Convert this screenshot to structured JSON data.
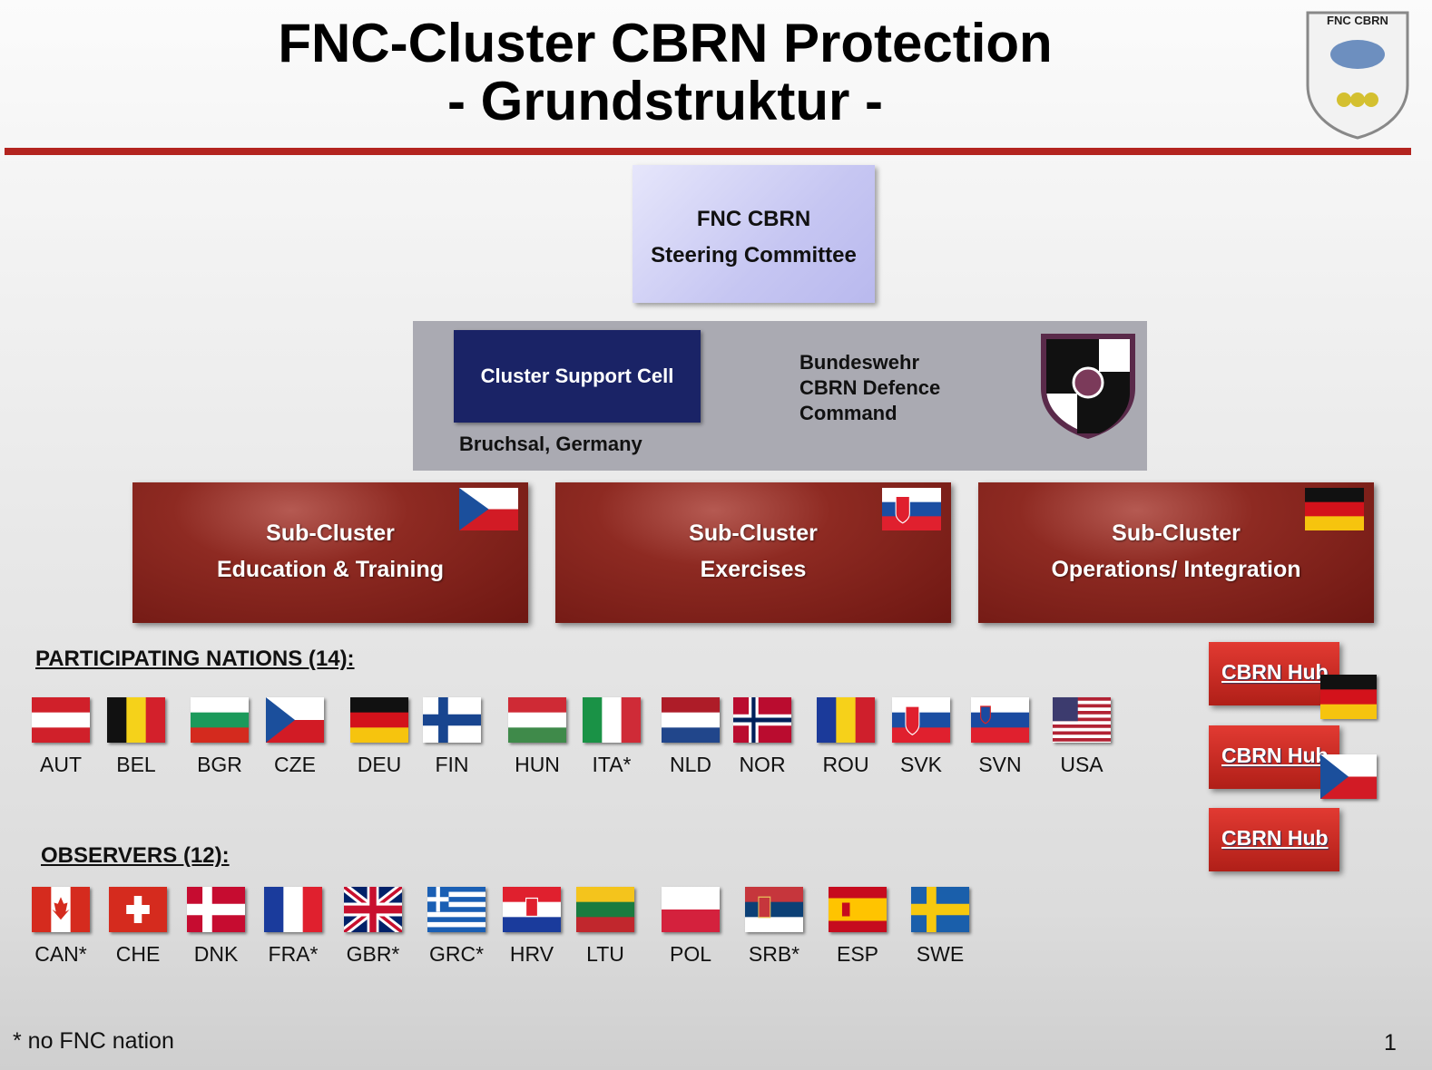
{
  "title": {
    "line1": "FNC-Cluster CBRN Protection",
    "line2": "- Grundstruktur -"
  },
  "logo_text": "FNC CBRN",
  "steering": {
    "line1": "FNC CBRN",
    "line2": "Steering Committee"
  },
  "support": {
    "cell": "Cluster Support Cell",
    "location": "Bruchsal, Germany",
    "command": [
      "Bundeswehr",
      "CBRN Defence",
      "Command"
    ]
  },
  "subclusters": [
    {
      "line1": "Sub-Cluster",
      "line2": "Education & Training",
      "flag": "CZE"
    },
    {
      "line1": "Sub-Cluster",
      "line2": "Exercises",
      "flag": "SVK"
    },
    {
      "line1": "Sub-Cluster",
      "line2": "Operations/ Integration",
      "flag": "DEU"
    }
  ],
  "participating": {
    "heading": "PARTICIPATING NATIONS (14):",
    "nations": [
      "AUT",
      "BEL",
      "BGR",
      "CZE",
      "DEU",
      "FIN",
      "HUN",
      "ITA*",
      "NLD",
      "NOR",
      "ROU",
      "SVK",
      "SVN",
      "USA"
    ]
  },
  "observers": {
    "heading": "OBSERVERS (12):",
    "nations": [
      "CAN*",
      "CHE",
      "DNK",
      "FRA*",
      "GBR*",
      "GRC*",
      "HRV",
      "LTU",
      "POL",
      "SRB*",
      "ESP",
      "SWE"
    ]
  },
  "hubs": [
    {
      "label": "CBRN Hub",
      "flag": "DEU"
    },
    {
      "label": "CBRN Hub",
      "flag": "CZE"
    },
    {
      "label": "CBRN Hub",
      "flag": ""
    }
  ],
  "footnote": "* no FNC nation",
  "page_number": "1",
  "colors": {
    "accent_red": "#b3241f",
    "support_navy": "#1a2366"
  }
}
